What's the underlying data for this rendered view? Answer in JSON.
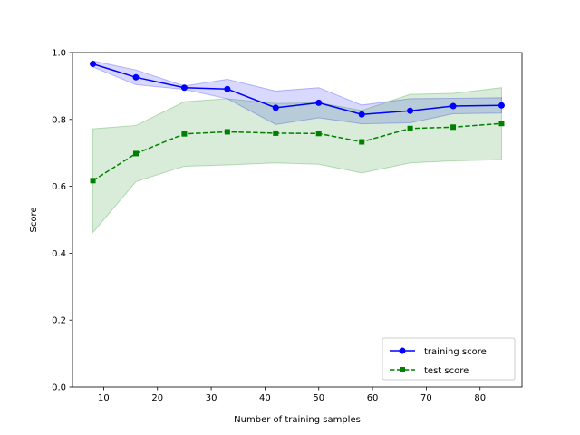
{
  "chart_data": {
    "type": "line",
    "xlabel": "Number of training samples",
    "ylabel": "Score",
    "xlim": [
      4.2,
      87.8
    ],
    "ylim": [
      0.0,
      1.0
    ],
    "xticks": [
      10,
      20,
      30,
      40,
      50,
      60,
      70,
      80
    ],
    "yticks": [
      0.0,
      0.2,
      0.4,
      0.6,
      0.8,
      1.0
    ],
    "grid": false,
    "legend_position": "lower-right",
    "x": [
      8,
      16,
      25,
      33,
      42,
      50,
      58,
      67,
      75,
      84
    ],
    "series": [
      {
        "name": "training score",
        "color": "#0000ff",
        "line_style": "solid",
        "marker": "circle",
        "values": [
          0.966,
          0.926,
          0.895,
          0.891,
          0.835,
          0.85,
          0.815,
          0.826,
          0.84,
          0.842
        ],
        "band_upper": [
          0.975,
          0.948,
          0.9,
          0.92,
          0.885,
          0.895,
          0.843,
          0.862,
          0.863,
          0.865
        ],
        "band_lower": [
          0.957,
          0.904,
          0.89,
          0.862,
          0.785,
          0.805,
          0.787,
          0.79,
          0.817,
          0.819
        ],
        "band_color": "#0000ff"
      },
      {
        "name": "test score",
        "color": "#008000",
        "line_style": "dashed",
        "marker": "square",
        "values": [
          0.617,
          0.698,
          0.757,
          0.763,
          0.759,
          0.758,
          0.733,
          0.773,
          0.777,
          0.788
        ],
        "band_upper": [
          0.772,
          0.782,
          0.853,
          0.862,
          0.848,
          0.85,
          0.827,
          0.875,
          0.878,
          0.895
        ],
        "band_lower": [
          0.462,
          0.614,
          0.66,
          0.664,
          0.67,
          0.666,
          0.64,
          0.67,
          0.676,
          0.68
        ],
        "band_color": "#008000"
      }
    ]
  }
}
